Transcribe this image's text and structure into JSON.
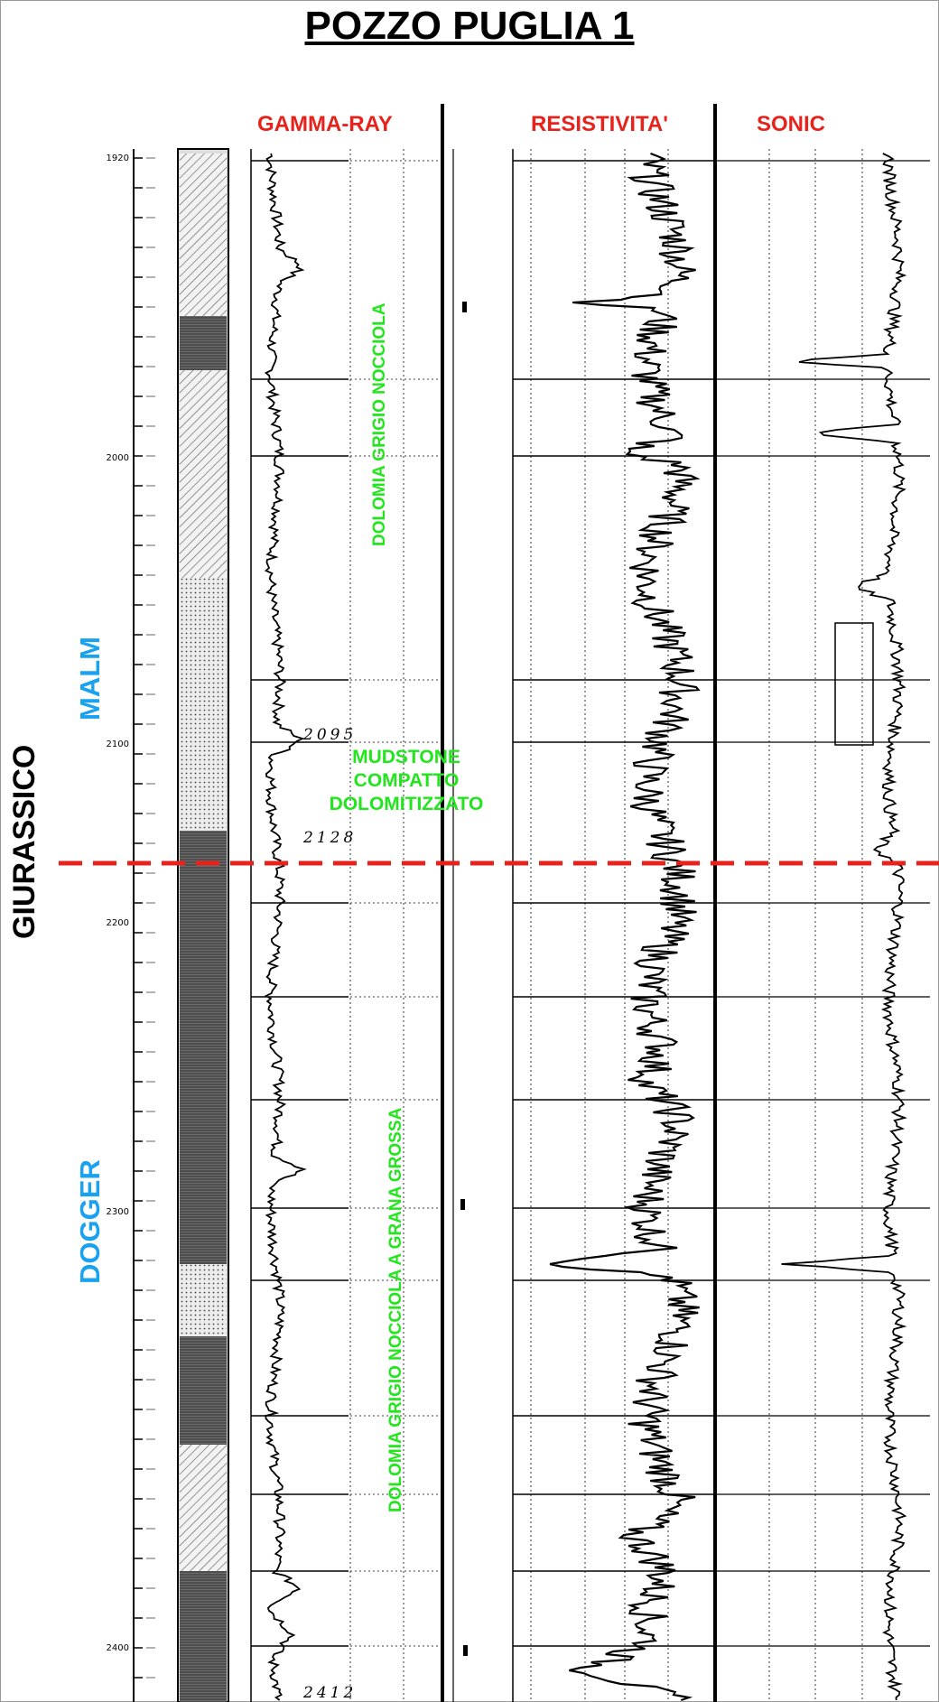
{
  "title": "POZZO PUGLIA 1",
  "tracks": {
    "gamma_ray": "GAMMA-RAY",
    "resistivity": "RESISTIVITA'",
    "sonic": "SONIC"
  },
  "era": "GIURASSICO",
  "epochs": {
    "upper": "MALM",
    "lower": "DOGGER"
  },
  "lithology": {
    "upper": "DOLOMIA GRIGIO NOCCIOLA",
    "middle_lines": [
      "MUDSTONE",
      "COMPATTO",
      "DOLOMITIZZATO"
    ],
    "lower": "DOLOMIA GRIGIO NOCCIOLA A GRANA GROSSA"
  },
  "depth_ticks": [
    "1920",
    "2000",
    "2100",
    "2200",
    "2300",
    "2400"
  ],
  "depth_marks": [
    "2095",
    "2128",
    "2412"
  ],
  "colors": {
    "track_headers": "#e8221b",
    "lithology": "#22e61c",
    "epochs": "#1aa2f0",
    "boundary_line": "#e8221b"
  }
}
